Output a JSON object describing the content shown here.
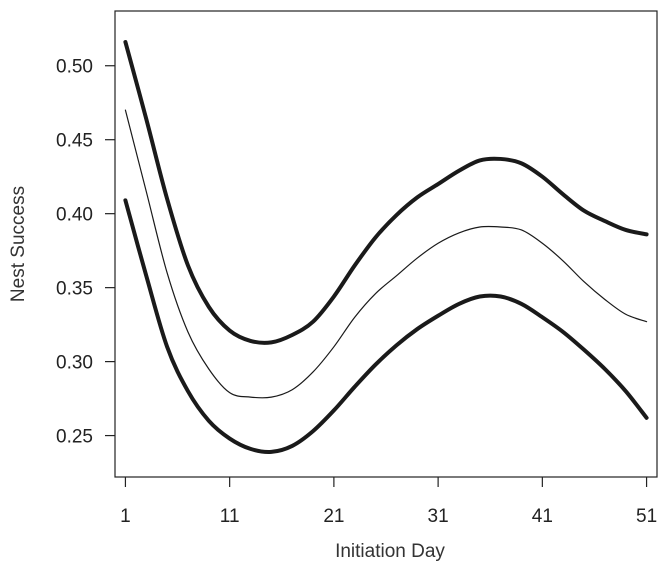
{
  "chart_data": {
    "type": "line",
    "xlabel": "Initiation Day",
    "ylabel": "Nest Success",
    "xlim": [
      0,
      52
    ],
    "ylim": [
      0.222,
      0.537
    ],
    "xticks": [
      1,
      11,
      21,
      31,
      41,
      51
    ],
    "xtick_labels": [
      "1",
      "11",
      "21",
      "31",
      "41",
      "51"
    ],
    "yticks": [
      0.25,
      0.3,
      0.35,
      0.4,
      0.45,
      0.5
    ],
    "ytick_labels": [
      "0.25",
      "0.30",
      "0.35",
      "0.40",
      "0.45",
      "0.50"
    ],
    "grid": false,
    "legend": "none",
    "x": [
      1,
      3,
      5,
      7,
      9,
      11,
      13,
      15,
      17,
      19,
      21,
      23,
      25,
      27,
      29,
      31,
      33,
      35,
      37,
      39,
      41,
      43,
      45,
      47,
      49,
      51
    ],
    "series": [
      {
        "role": "upper",
        "values": [
          0.516,
          0.464,
          0.41,
          0.365,
          0.337,
          0.321,
          0.314,
          0.313,
          0.318,
          0.327,
          0.344,
          0.365,
          0.384,
          0.399,
          0.411,
          0.42,
          0.429,
          0.436,
          0.437,
          0.434,
          0.425,
          0.413,
          0.402,
          0.395,
          0.389,
          0.386
        ],
        "color": "#1a1a1a",
        "width": "thick"
      },
      {
        "role": "estimate",
        "values": [
          0.47,
          0.415,
          0.36,
          0.32,
          0.295,
          0.279,
          0.276,
          0.276,
          0.281,
          0.293,
          0.31,
          0.33,
          0.346,
          0.358,
          0.37,
          0.38,
          0.387,
          0.391,
          0.391,
          0.389,
          0.38,
          0.368,
          0.354,
          0.342,
          0.332,
          0.327
        ],
        "color": "#1a1a1a",
        "width": "thin"
      },
      {
        "role": "lower",
        "values": [
          0.409,
          0.358,
          0.31,
          0.28,
          0.26,
          0.248,
          0.241,
          0.239,
          0.243,
          0.253,
          0.267,
          0.283,
          0.298,
          0.311,
          0.322,
          0.331,
          0.339,
          0.344,
          0.344,
          0.339,
          0.33,
          0.32,
          0.308,
          0.295,
          0.28,
          0.262
        ],
        "color": "#1a1a1a",
        "width": "thick"
      }
    ]
  }
}
